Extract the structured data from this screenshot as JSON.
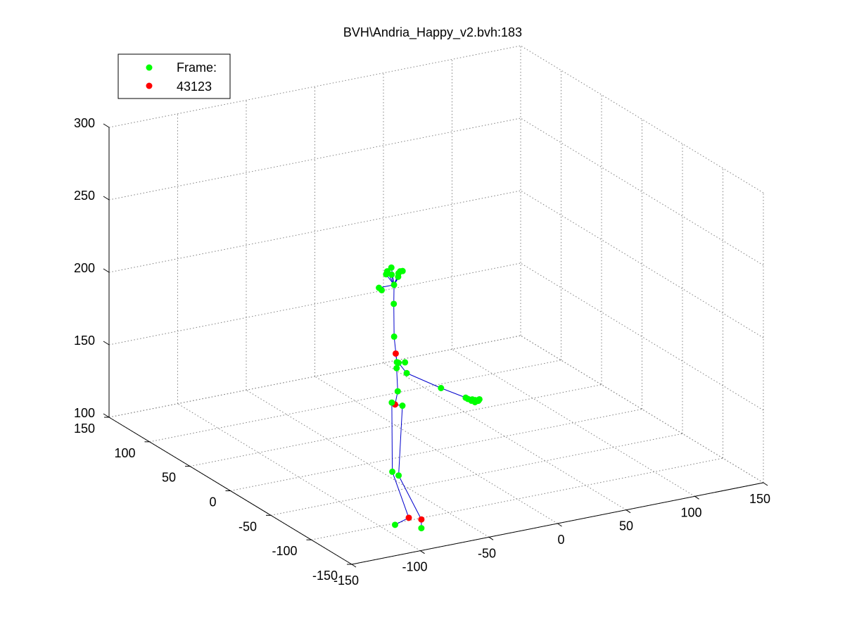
{
  "chart_data": {
    "type": "scatter",
    "title": "BVH\\Andria_Happy_v2.bvh:183",
    "xlabel": "",
    "ylabel": "",
    "zlabel": "",
    "grid": true,
    "legend_position": "top-left",
    "xlim": [
      -150,
      150
    ],
    "ylim": [
      -150,
      150
    ],
    "zlim": [
      100,
      300
    ],
    "x_ticks": [
      "-150",
      "-100",
      "-50",
      "0",
      "50",
      "100",
      "150"
    ],
    "y_ticks": [
      "-150",
      "-100",
      "-50",
      "0",
      "50",
      "100",
      "150"
    ],
    "z_ticks": [
      "100",
      "150",
      "200",
      "250",
      "300"
    ],
    "legend": [
      {
        "label": "Frame:",
        "color": "#00ff00"
      },
      {
        "label": "43123",
        "color": "#ff0000"
      }
    ],
    "colors": {
      "bone": "#0000cc",
      "joint": "#00ff00",
      "highlight": "#ff0000",
      "grid": "#808080"
    },
    "joints": [
      {
        "id": "hips",
        "x": -30,
        "y": 0,
        "z": 137
      },
      {
        "id": "spine1",
        "x": -31,
        "y": -5,
        "z": 148
      },
      {
        "id": "spine2",
        "x": -33,
        "y": -7,
        "z": 165
      },
      {
        "id": "chest",
        "x": -36,
        "y": -9,
        "z": 188
      },
      {
        "id": "neck",
        "x": -38,
        "y": -12,
        "z": 212
      },
      {
        "id": "head_base",
        "x": -39,
        "y": -14,
        "z": 226
      },
      {
        "id": "head1",
        "x": -39,
        "y": -11,
        "z": 232
      },
      {
        "id": "head2",
        "x": -34,
        "y": -11,
        "z": 232
      },
      {
        "id": "head3",
        "x": -41,
        "y": -9,
        "z": 234
      },
      {
        "id": "head4",
        "x": -34,
        "y": -13,
        "z": 234
      },
      {
        "id": "head5",
        "x": -43,
        "y": -11,
        "z": 233
      },
      {
        "id": "head6",
        "x": -31,
        "y": -11,
        "z": 233
      },
      {
        "id": "head7",
        "x": -38,
        "y": -9,
        "z": 236
      },
      {
        "id": "head8",
        "x": -36,
        "y": -14,
        "z": 231
      },
      {
        "id": "head9",
        "x": -50,
        "y": -14,
        "z": 226
      },
      {
        "id": "head10",
        "x": -48,
        "y": -14,
        "z": 224
      },
      {
        "id": "sh_a",
        "x": -36,
        "y": -11,
        "z": 177
      },
      {
        "id": "sh_b",
        "x": -34,
        "y": -9,
        "z": 170
      },
      {
        "id": "sh_c",
        "x": -31,
        "y": -14,
        "z": 171
      },
      {
        "id": "sh_d",
        "x": -31,
        "y": -6,
        "z": 168
      },
      {
        "id": "arm1",
        "x": -28,
        "y": -11,
        "z": 162
      },
      {
        "id": "elbow",
        "x": -3,
        "y": -11,
        "z": 147
      },
      {
        "id": "hand1",
        "x": 15,
        "y": -11,
        "z": 137
      },
      {
        "id": "hand2",
        "x": 18,
        "y": -13,
        "z": 135
      },
      {
        "id": "hand3",
        "x": 19,
        "y": -7,
        "z": 134
      },
      {
        "id": "hand4",
        "x": 20,
        "y": -14,
        "z": 134
      },
      {
        "id": "hand5",
        "x": 21,
        "y": -9,
        "z": 134
      },
      {
        "id": "hand6",
        "x": 22,
        "y": -11,
        "z": 134
      },
      {
        "id": "hand7",
        "x": 23,
        "y": -13,
        "z": 134
      },
      {
        "id": "hand8",
        "x": 25,
        "y": -11,
        "z": 134
      },
      {
        "id": "lhip",
        "x": -30,
        "y": 4,
        "z": 137
      },
      {
        "id": "rhip",
        "x": -27,
        "y": -4,
        "z": 137
      },
      {
        "id": "lknee",
        "x": -32,
        "y": 0,
        "z": 91
      },
      {
        "id": "rknee",
        "x": -28,
        "y": -1,
        "z": 88
      },
      {
        "id": "lankle",
        "x": -20,
        "y": 0,
        "z": 57
      },
      {
        "id": "rankle",
        "x": -12,
        "y": -2,
        "z": 55
      },
      {
        "id": "ltoe",
        "x": -30,
        "y": 0,
        "z": 54
      },
      {
        "id": "rtoe",
        "x": -12,
        "y": -2,
        "z": 49
      }
    ],
    "highlighted": [
      "sh_a",
      "hips",
      "lankle",
      "rankle"
    ],
    "bones": [
      [
        "hips",
        "spine1"
      ],
      [
        "spine1",
        "spine2"
      ],
      [
        "spine2",
        "sh_b"
      ],
      [
        "sh_b",
        "chest"
      ],
      [
        "chest",
        "neck"
      ],
      [
        "neck",
        "head_base"
      ],
      [
        "head_base",
        "head1"
      ],
      [
        "head_base",
        "head2"
      ],
      [
        "head_base",
        "head3"
      ],
      [
        "head_base",
        "head4"
      ],
      [
        "head_base",
        "head5"
      ],
      [
        "head_base",
        "head6"
      ],
      [
        "head_base",
        "head7"
      ],
      [
        "head_base",
        "head8"
      ],
      [
        "head_base",
        "head9"
      ],
      [
        "head9",
        "head10"
      ],
      [
        "sh_b",
        "sh_a"
      ],
      [
        "sh_b",
        "sh_c"
      ],
      [
        "sh_b",
        "sh_d"
      ],
      [
        "sh_d",
        "arm1"
      ],
      [
        "arm1",
        "elbow"
      ],
      [
        "elbow",
        "hand1"
      ],
      [
        "hand1",
        "hand2"
      ],
      [
        "hand1",
        "hand3"
      ],
      [
        "hand1",
        "hand4"
      ],
      [
        "hand1",
        "hand5"
      ],
      [
        "hand1",
        "hand6"
      ],
      [
        "hand1",
        "hand7"
      ],
      [
        "hand1",
        "hand8"
      ],
      [
        "hips",
        "lhip"
      ],
      [
        "hips",
        "rhip"
      ],
      [
        "lhip",
        "lknee"
      ],
      [
        "rhip",
        "rknee"
      ],
      [
        "lknee",
        "lankle"
      ],
      [
        "rknee",
        "rankle"
      ],
      [
        "lankle",
        "ltoe"
      ],
      [
        "rankle",
        "rtoe"
      ]
    ]
  }
}
